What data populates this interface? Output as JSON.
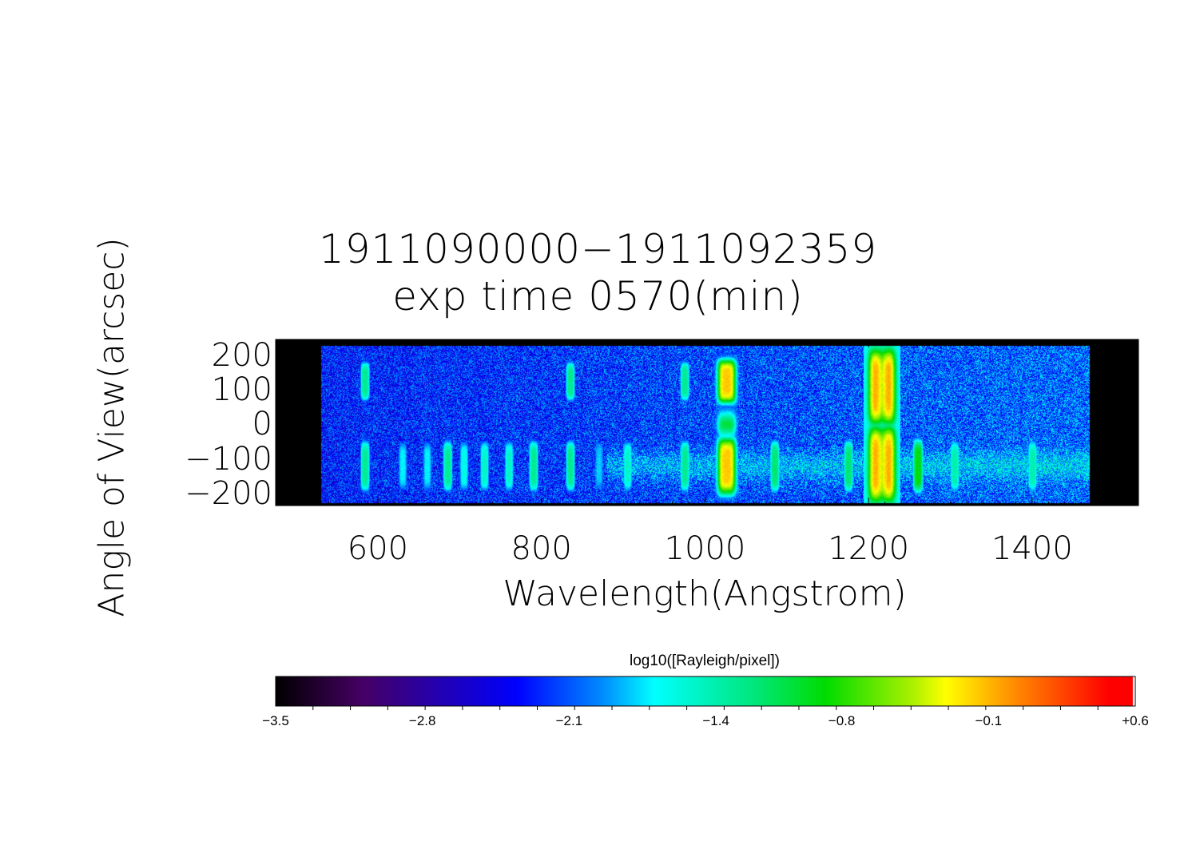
{
  "chart_data": {
    "type": "heatmap",
    "title_lines": [
      "1911090000−1911092359",
      "exp time 0570(min)"
    ],
    "xlabel": "Wavelength(Angstrom)",
    "ylabel": "Angle of View(arcsec)",
    "xlim": [
      475,
      1530
    ],
    "ylim": [
      -235,
      245
    ],
    "x_ticks": [
      {
        "value": 600,
        "label": "600"
      },
      {
        "value": 800,
        "label": "800"
      },
      {
        "value": 1000,
        "label": "1000"
      },
      {
        "value": 1200,
        "label": "1200"
      },
      {
        "value": 1400,
        "label": "1400"
      }
    ],
    "y_ticks": [
      {
        "value": 200,
        "label": "200"
      },
      {
        "value": 100,
        "label": "100"
      },
      {
        "value": 0,
        "label": "0"
      },
      {
        "value": -100,
        "label": "−100"
      },
      {
        "value": -200,
        "label": "−200"
      }
    ],
    "data_wavelength_range": [
      530,
      1470
    ],
    "colorbar": {
      "label": "log10([Rayleigh/pixel])",
      "range": [
        -3.5,
        0.6
      ],
      "colormap": "rainbow",
      "ticks": [
        {
          "value": -3.5,
          "label": "−3.5"
        },
        {
          "value": -2.8,
          "label": "−2.8"
        },
        {
          "value": -2.1,
          "label": "−2.1"
        },
        {
          "value": -1.4,
          "label": "−1.4"
        },
        {
          "value": -0.8,
          "label": "−0.8"
        },
        {
          "value": -0.1,
          "label": "−0.1"
        },
        {
          "value": 0.6,
          "label": "+0.6"
        }
      ]
    },
    "background_level": -2.3,
    "emission_lines": [
      {
        "wavelength": 584,
        "peak": -1.3,
        "upper_blob": true
      },
      {
        "wavelength": 630,
        "peak": -1.7
      },
      {
        "wavelength": 660,
        "peak": -1.7
      },
      {
        "wavelength": 685,
        "peak": -1.3
      },
      {
        "wavelength": 705,
        "peak": -1.6
      },
      {
        "wavelength": 730,
        "peak": -1.5
      },
      {
        "wavelength": 760,
        "peak": -1.5
      },
      {
        "wavelength": 790,
        "peak": -1.3
      },
      {
        "wavelength": 835,
        "peak": -1.3,
        "upper_blob": true
      },
      {
        "wavelength": 870,
        "peak": -1.8
      },
      {
        "wavelength": 905,
        "peak": -1.5
      },
      {
        "wavelength": 975,
        "peak": -1.3,
        "upper_blob": true
      },
      {
        "wavelength": 1026,
        "peak": -0.15,
        "upper_blob": true,
        "neck": true
      },
      {
        "wavelength": 1085,
        "peak": -1.2
      },
      {
        "wavelength": 1175,
        "peak": -1.2
      },
      {
        "wavelength": 1216,
        "peak": 0.45,
        "figure_eight": true
      },
      {
        "wavelength": 1260,
        "peak": -0.9
      },
      {
        "wavelength": 1305,
        "peak": -1.4
      },
      {
        "wavelength": 1400,
        "peak": -1.4
      }
    ]
  }
}
